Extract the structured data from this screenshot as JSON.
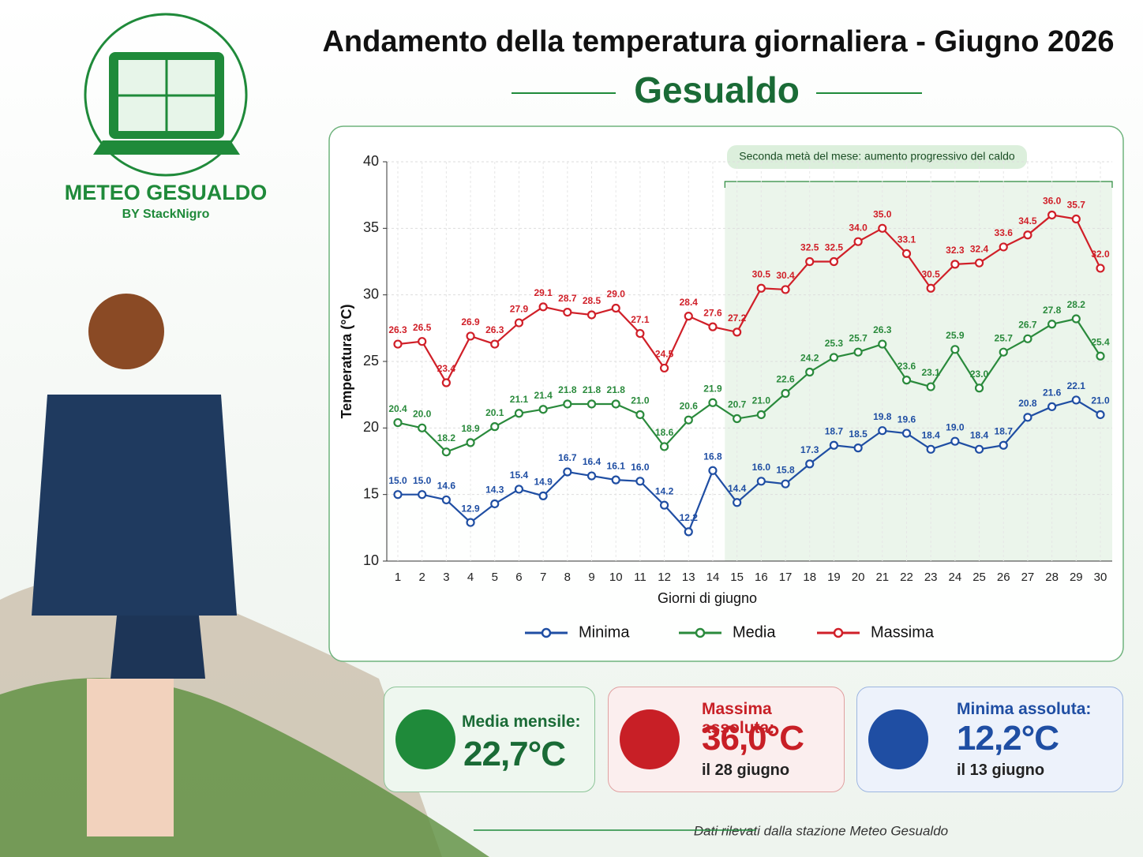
{
  "chart_data": {
    "type": "line",
    "title": "Andamento della temperatura giornaliera - Giugno 2026",
    "subtitle": "Gesualdo",
    "x_label": "Giorni di giugno",
    "y_label": "Temperatura (°C)",
    "categories": [
      "1",
      "2",
      "3",
      "4",
      "5",
      "6",
      "7",
      "8",
      "9",
      "10",
      "11",
      "12",
      "13",
      "14",
      "15",
      "16",
      "17",
      "18",
      "19",
      "20",
      "21",
      "22",
      "23",
      "24",
      "25",
      "26",
      "27",
      "28",
      "29",
      "30"
    ],
    "ylim": [
      10,
      40
    ],
    "yticks": [
      10,
      15,
      20,
      25,
      30,
      35,
      40
    ],
    "grid": true,
    "highlight": {
      "label": "Seconda metà del mese: aumento progressivo del caldo",
      "from": "15",
      "to": "30"
    },
    "series": [
      {
        "name": "Minima",
        "color": "#1f4ea3",
        "values": [
          15.0,
          15.0,
          14.6,
          12.9,
          14.3,
          15.4,
          14.9,
          16.7,
          16.4,
          16.1,
          16.0,
          14.2,
          12.2,
          16.8,
          14.4,
          16.0,
          15.8,
          17.3,
          18.7,
          18.5,
          19.8,
          19.6,
          18.4,
          19.0,
          18.4,
          18.7,
          20.8,
          21.6,
          22.1,
          21.0
        ],
        "value_labels": [
          "15.0",
          "15.0",
          "14.6",
          "12.9",
          "14.3",
          "15.4",
          "14.9",
          "16.7",
          "16.4",
          "16.1",
          "16.0",
          "14.2",
          "12.2",
          "16.8",
          "14.4",
          "16.0",
          "15.8",
          "17.3",
          "18.7",
          "18.5",
          "19.8",
          "19.6",
          "18.4",
          "19.0",
          "18.4",
          "18.7",
          "20.8",
          "21.6",
          "22.1",
          "21.0"
        ]
      },
      {
        "name": "Media",
        "color": "#2a8a3c",
        "values": [
          20.4,
          20.0,
          18.2,
          18.9,
          20.1,
          21.1,
          21.4,
          21.8,
          21.8,
          21.8,
          21.0,
          18.6,
          20.6,
          21.9,
          20.7,
          21.0,
          22.6,
          24.2,
          25.3,
          25.7,
          26.3,
          23.6,
          23.1,
          25.9,
          23.0,
          25.7,
          26.7,
          27.8,
          28.2,
          25.4
        ],
        "value_labels": [
          "20.4",
          "20.0",
          "18.2",
          "18.9",
          "20.1",
          "21.1",
          "21.4",
          "21.8",
          "21.8",
          "21.8",
          "21.0",
          "18.6",
          "20.6",
          "21.9",
          "20.7",
          "21.0",
          "22.6",
          "24.2",
          "25.3",
          "25.7",
          "26.3",
          "23.6",
          "23.1",
          "25.9",
          "23.0",
          "25.7",
          "26.7",
          "27.8",
          "28.2",
          "25.4"
        ]
      },
      {
        "name": "Massima",
        "color": "#d01f28",
        "values": [
          26.3,
          26.5,
          23.4,
          26.9,
          26.3,
          27.9,
          29.1,
          28.7,
          28.5,
          29.0,
          27.1,
          24.5,
          28.4,
          27.6,
          27.2,
          30.5,
          30.4,
          32.5,
          32.5,
          34.0,
          35.0,
          33.1,
          30.5,
          32.3,
          32.4,
          33.6,
          34.5,
          36.0,
          35.7,
          32.0
        ],
        "value_labels": [
          "26.3",
          "26.5",
          "23.4",
          "26.9",
          "26.3",
          "27.9",
          "29.1",
          "28.7",
          "28.5",
          "29.0",
          "27.1",
          "24.5",
          "28.4",
          "27.6",
          "27.2",
          "30.5",
          "30.4",
          "32.5",
          "32.5",
          "34.0",
          "35.0",
          "33.1",
          "30.5",
          "32.3",
          "32.4",
          "33.6",
          "34.5",
          "36.0",
          "35.7",
          "32.0"
        ]
      }
    ]
  },
  "logo": {
    "name": "METEO GESUALDO",
    "byline": "BY StackNigro"
  },
  "cards": [
    {
      "label": "Media mensile:",
      "value": "22,7°C"
    },
    {
      "label": "Massima assoluta:",
      "value": "36,0°C",
      "note": "il 28 giugno"
    },
    {
      "label": "Minima assoluta:",
      "value": "12,2°C",
      "note": "il 13 giugno"
    }
  ],
  "footer": "Dati rilevati dalla stazione Meteo Gesualdo"
}
